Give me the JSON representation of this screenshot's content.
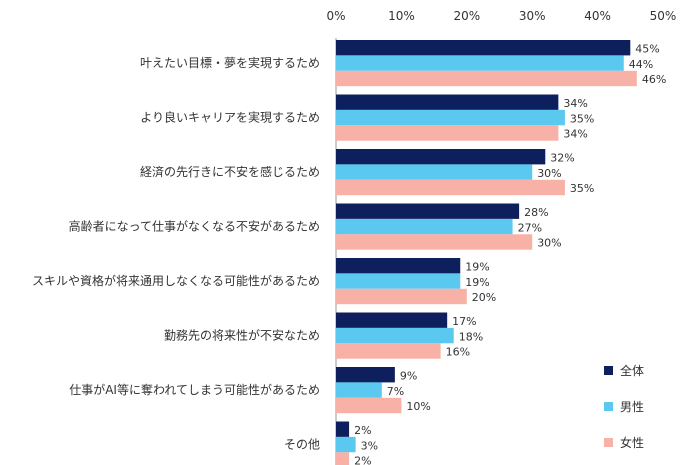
{
  "chart_data": {
    "type": "bar",
    "orientation": "horizontal",
    "title": "",
    "xlabel": "",
    "ylabel": "",
    "xlim": [
      0,
      50
    ],
    "x_ticks": [
      "0%",
      "10%",
      "20%",
      "30%",
      "40%",
      "50%"
    ],
    "x_axis_position": "top",
    "grid": false,
    "legend_position": "bottom-right",
    "categories": [
      "叶えたい目標・夢を実現するため",
      "より良いキャリアを実現するため",
      "経済の先行きに不安を感じるため",
      "高齢者になって仕事がなくなる不安があるため",
      "スキルや資格が将来通用しなくなる可能性があるため",
      "勤務先の将来性が不安なため",
      "仕事がAI等に奪われてしまう可能性があるため",
      "その他"
    ],
    "series": [
      {
        "name": "全体",
        "color": "#0d1f5c",
        "values": [
          45,
          34,
          32,
          28,
          19,
          17,
          9,
          2
        ]
      },
      {
        "name": "男性",
        "color": "#5bc8f0",
        "values": [
          44,
          35,
          30,
          27,
          19,
          18,
          7,
          3
        ]
      },
      {
        "name": "女性",
        "color": "#f8b1a6",
        "values": [
          46,
          34,
          35,
          30,
          20,
          16,
          10,
          2
        ]
      }
    ],
    "value_suffix": "%"
  }
}
